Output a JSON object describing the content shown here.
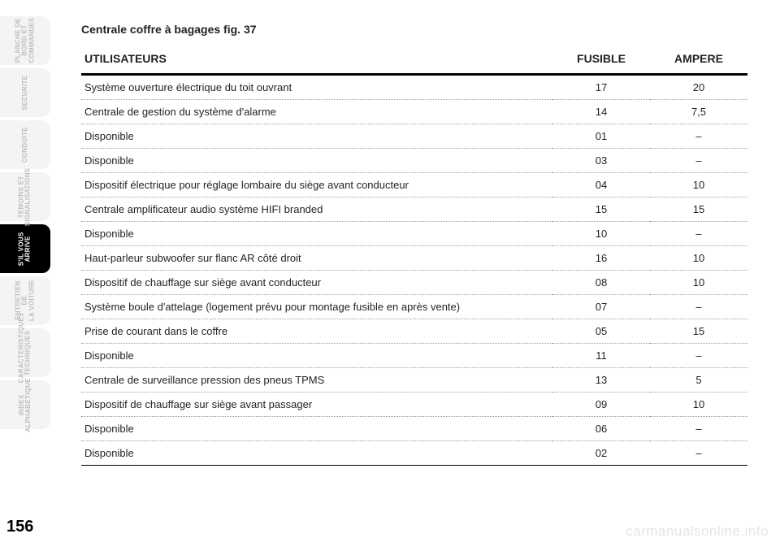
{
  "nav": {
    "tabs": [
      {
        "label": "PLANCHE DE\nBORD ET\nCOMMANDES",
        "active": false
      },
      {
        "label": "SECURITE",
        "active": false
      },
      {
        "label": "CONDUITE",
        "active": false
      },
      {
        "label": "TEMOINS ET\nSIGNALISATIONS",
        "active": false
      },
      {
        "label": "S'IL VOUS\nARRIVE",
        "active": true
      },
      {
        "label": "ENTRETIEN DE\nLA VOITURE",
        "active": false
      },
      {
        "label": "CARACTERISTIQUES\nTECHNIQUES",
        "active": false
      },
      {
        "label": "INDEX\nALPHABETIQUE",
        "active": false
      }
    ]
  },
  "page": {
    "number": "156",
    "title": "Centrale coffre à bagages fig. 37"
  },
  "table": {
    "headers": {
      "user": "UTILISATEURS",
      "fuse": "FUSIBLE",
      "amp": "AMPERE"
    },
    "rows": [
      {
        "user": "Système ouverture électrique du toit ouvrant",
        "fuse": "17",
        "amp": "20"
      },
      {
        "user": "Centrale de gestion du système d'alarme",
        "fuse": "14",
        "amp": "7,5"
      },
      {
        "user": "Disponible",
        "fuse": "01",
        "amp": "–"
      },
      {
        "user": "Disponible",
        "fuse": "03",
        "amp": "–"
      },
      {
        "user": "Dispositif électrique pour réglage lombaire du siège avant conducteur",
        "fuse": "04",
        "amp": "10"
      },
      {
        "user": "Centrale amplificateur audio système HIFI branded",
        "fuse": "15",
        "amp": "15"
      },
      {
        "user": "Disponible",
        "fuse": "10",
        "amp": "–"
      },
      {
        "user": "Haut-parleur subwoofer sur flanc AR côté droit",
        "fuse": "16",
        "amp": "10"
      },
      {
        "user": "Dispositif de chauffage sur siège avant conducteur",
        "fuse": "08",
        "amp": "10"
      },
      {
        "user": "Système boule d'attelage (logement prévu pour montage fusible en après vente)",
        "fuse": "07",
        "amp": "–"
      },
      {
        "user": "Prise de courant dans le coffre",
        "fuse": "05",
        "amp": "15"
      },
      {
        "user": "Disponible",
        "fuse": "11",
        "amp": "–"
      },
      {
        "user": "Centrale de surveillance pression des pneus TPMS",
        "fuse": "13",
        "amp": "5"
      },
      {
        "user": "Dispositif de chauffage sur siège avant passager",
        "fuse": "09",
        "amp": "10"
      },
      {
        "user": "Disponible",
        "fuse": "06",
        "amp": "–"
      },
      {
        "user": "Disponible",
        "fuse": "02",
        "amp": "–"
      }
    ]
  },
  "watermark": "carmanualsonline.info",
  "style": {
    "bg": "#ffffff",
    "text": "#231f20",
    "tab_inactive_bg": "#f4f4f4",
    "tab_inactive_text": "#bdbdbd",
    "tab_active_bg": "#000000",
    "tab_active_text": "#ffffff",
    "row_border": "#9e9e9e",
    "watermark_color": "#e4e4e4"
  }
}
